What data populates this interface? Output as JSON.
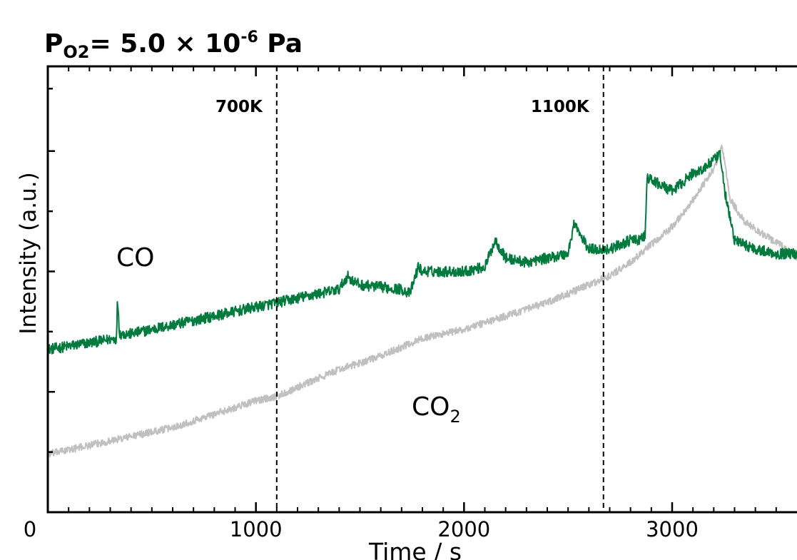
{
  "chart_data": {
    "type": "line",
    "title_main": "P",
    "title_sub": "O2",
    "title_eq": "= 5.0 × 10",
    "title_sup": "-6",
    "title_unit": " Pa",
    "xlabel": "Time / s",
    "ylabel": "Intensity (a.u.)",
    "xlim": [
      0,
      3600
    ],
    "ylim": [
      0,
      1
    ],
    "y_scale": "arbitrary units, no numeric tick labels",
    "grid": false,
    "x_ticks": [
      0,
      1000,
      2000,
      3000
    ],
    "x_tick_labels": [
      "0",
      "1000",
      "2000",
      "3000"
    ],
    "annotations": [
      {
        "text": "700K",
        "x": 1100
      },
      {
        "text": "1100K",
        "x": 2670
      }
    ],
    "series": [
      {
        "name": "CO",
        "color": "#007a3d",
        "noise": 0.012,
        "x": [
          0,
          200,
          330,
          335,
          345,
          400,
          600,
          800,
          1000,
          1100,
          1200,
          1400,
          1440,
          1460,
          1500,
          1700,
          1740,
          1780,
          1800,
          2000,
          2100,
          2150,
          2200,
          2300,
          2500,
          2530,
          2560,
          2600,
          2700,
          2800,
          2840,
          2870,
          2880,
          3000,
          3100,
          3150,
          3200,
          3230,
          3260,
          3300,
          3400,
          3500,
          3600
        ],
        "y": [
          0.365,
          0.38,
          0.39,
          0.48,
          0.4,
          0.4,
          0.42,
          0.44,
          0.46,
          0.47,
          0.48,
          0.5,
          0.53,
          0.52,
          0.51,
          0.5,
          0.49,
          0.55,
          0.54,
          0.54,
          0.55,
          0.61,
          0.57,
          0.56,
          0.58,
          0.65,
          0.62,
          0.59,
          0.59,
          0.61,
          0.61,
          0.62,
          0.75,
          0.72,
          0.76,
          0.77,
          0.79,
          0.8,
          0.7,
          0.61,
          0.59,
          0.58,
          0.58
        ]
      },
      {
        "name": "CO2",
        "color": "#c0c0c0",
        "noise": 0.008,
        "x": [
          0,
          200,
          400,
          600,
          800,
          1000,
          1100,
          1200,
          1400,
          1600,
          1800,
          2000,
          2200,
          2400,
          2600,
          2700,
          2800,
          2900,
          3000,
          3100,
          3200,
          3240,
          3280,
          3350,
          3450,
          3550,
          3600
        ],
        "y": [
          0.13,
          0.15,
          0.17,
          0.19,
          0.22,
          0.25,
          0.26,
          0.28,
          0.32,
          0.35,
          0.39,
          0.41,
          0.44,
          0.47,
          0.51,
          0.53,
          0.56,
          0.6,
          0.64,
          0.7,
          0.77,
          0.82,
          0.7,
          0.65,
          0.62,
          0.59,
          0.57
        ]
      }
    ],
    "series_labels": {
      "co": "CO",
      "co2_main": "CO",
      "co2_sub": "2"
    }
  }
}
